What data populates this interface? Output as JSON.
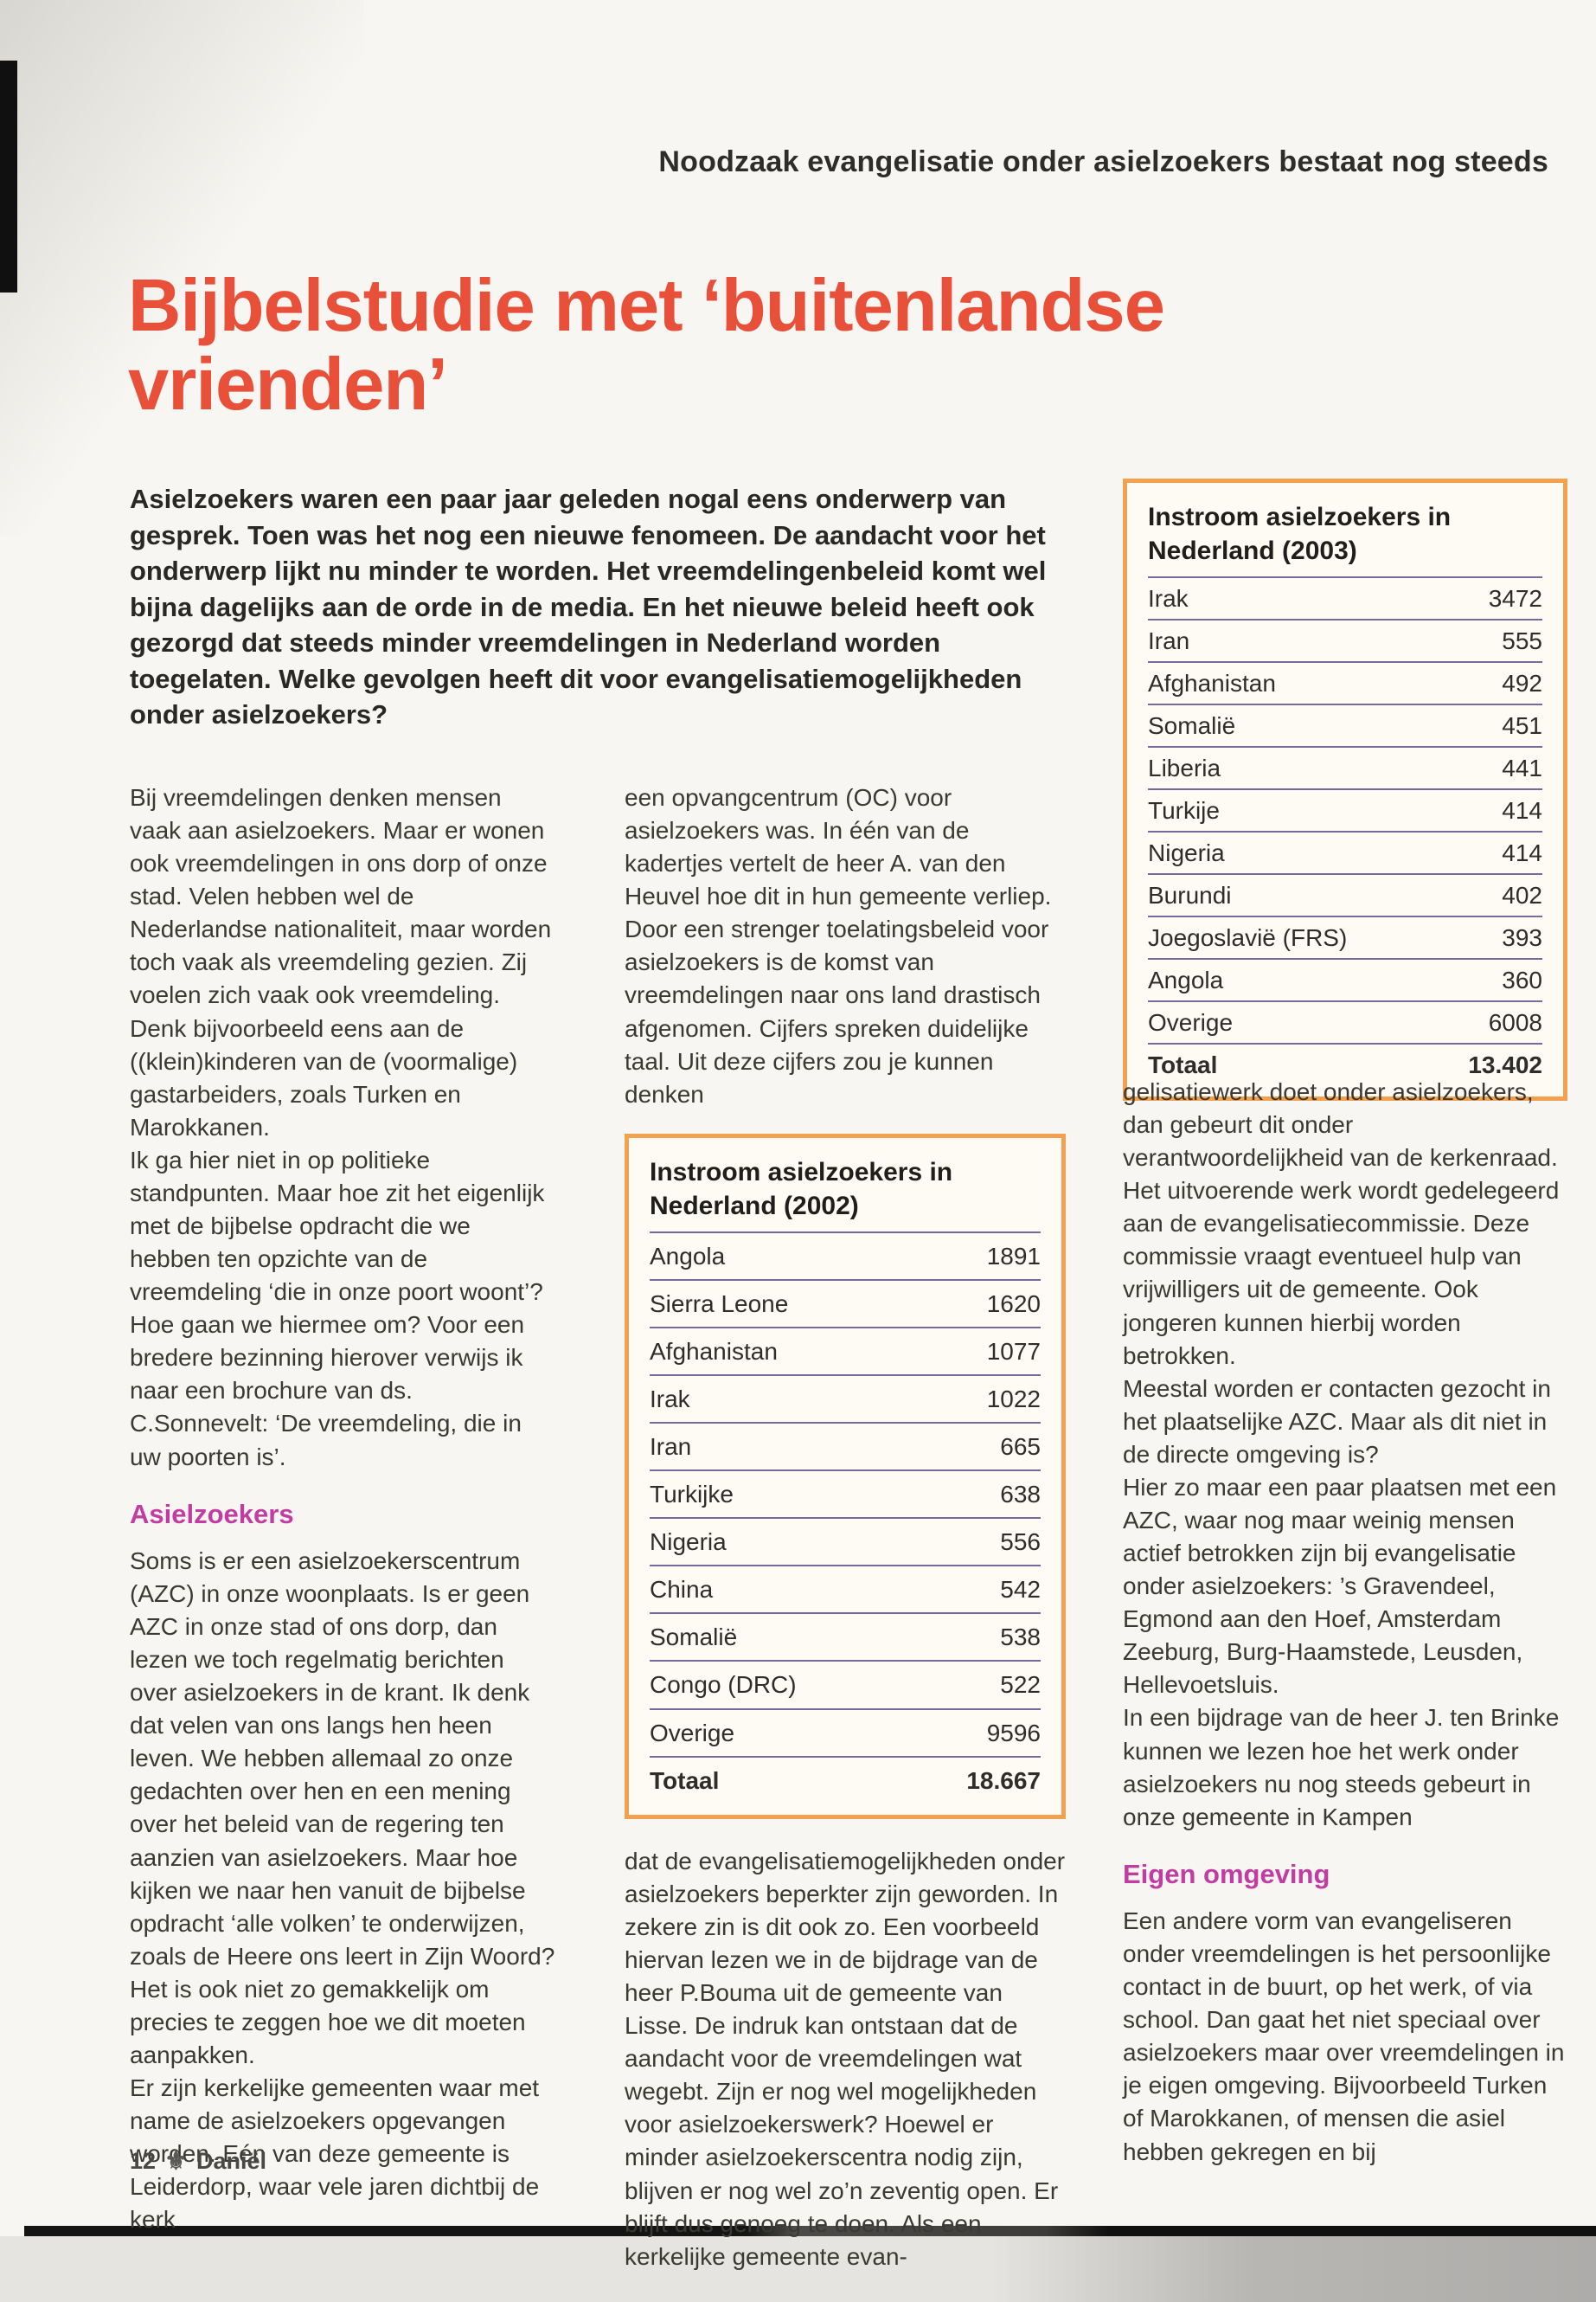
{
  "page": {
    "strap": "Noodzaak evangelisatie onder asielzoekers bestaat nog steeds",
    "title": "Bijbelstudie met ‘buitenlandse vrienden’",
    "intro": "Asielzoekers waren een paar jaar geleden nogal eens onderwerp van gesprek. Toen was het nog een nieuwe fenomeen. De aandacht voor het onderwerp lijkt nu minder te worden. Het vreemdelingenbeleid komt wel bijna dagelijks aan de orde in de media. En het nieuwe beleid heeft ook gezorgd dat steeds minder vreemdelingen in Nederland worden toegelaten. Welke gevolgen heeft dit voor evangelisatiemogelijkheden onder asielzoekers?",
    "footer": {
      "page_number": "12",
      "magazine": "Daniël"
    }
  },
  "article": {
    "left": {
      "p1": "Bij vreemdelingen denken mensen vaak aan asielzoekers. Maar er wonen ook vreemdelingen in ons dorp of onze stad. Velen hebben wel de Nederlandse nationaliteit, maar worden toch vaak als vreemdeling gezien. Zij voelen zich vaak ook vreemdeling. Denk bijvoorbeeld eens aan de ((klein)kinderen van de (voormalige) gastarbeiders, zoals Turken en Marokkanen.",
      "p2": "Ik ga hier niet in op politieke standpunten. Maar hoe zit het eigenlijk met de bijbelse opdracht die we hebben ten opzichte van de vreemdeling ‘die in onze poort woont’? Hoe gaan we hiermee om? Voor een bredere bezinning hierover verwijs ik naar een brochure van ds. C.Sonnevelt: ‘De vreemdeling, die in uw poorten is’.",
      "heading": "Asielzoekers",
      "p3": "Soms is er een asielzoekerscentrum (AZC) in onze woonplaats. Is er geen AZC in onze stad of ons dorp, dan lezen we toch regelmatig berichten over asielzoekers in de krant. Ik denk dat velen van ons langs hen heen leven. We hebben allemaal zo onze gedachten over hen en een mening over het beleid van de regering ten aanzien van asielzoekers. Maar hoe kijken we naar hen vanuit de bijbelse opdracht ‘alle volken’ te onderwijzen, zoals de Heere ons leert in Zijn Woord? Het is ook niet zo gemakkelijk om precies te zeggen hoe we dit moeten aanpakken.",
      "p4": "Er zijn kerkelijke gemeenten waar met name de asielzoekers opgevangen worden. Eén van deze gemeente is Leiderdorp, waar vele jaren dichtbij de kerk"
    },
    "middle": {
      "p1": "een opvangcentrum (OC) voor asielzoekers was. In één van de kadertjes vertelt de heer A. van den Heuvel hoe dit in hun gemeente verliep.",
      "p2": "Door een strenger toelatingsbeleid voor asielzoekers is de komst van vreemdelingen naar ons land drastisch afgenomen. Cijfers spreken duidelijke taal. Uit deze cijfers zou je kunnen denken",
      "p3": "dat de evangelisatiemogelijkheden onder asielzoekers beperkter zijn geworden. In zekere zin is dit ook zo. Een voorbeeld hiervan lezen we in de bijdrage van de heer P.Bouma uit de gemeente van Lisse. De indruk kan ontstaan dat de aandacht voor de vreemdelingen wat wegebt. Zijn er nog wel mogelijkheden voor asielzoekerswerk? Hoewel er minder asielzoekerscentra nodig zijn, blijven er nog wel zo’n zeventig open. Er blijft dus genoeg te doen. Als een kerkelijke gemeente evan-"
    },
    "right": {
      "p1": "gelisatiewerk doet onder asielzoekers, dan gebeurt dit onder verantwoordelijkheid van de kerkenraad. Het uitvoerende werk wordt gedelegeerd aan de evangelisatiecommissie. Deze commissie vraagt eventueel hulp van vrijwilligers uit de gemeente. Ook jongeren kunnen hierbij worden betrokken.",
      "p2": "Meestal worden er contacten gezocht in het plaatselijke AZC. Maar als dit niet in de directe omgeving is?",
      "p3": "Hier zo maar een paar plaatsen met een AZC, waar nog maar weinig mensen actief betrokken zijn bij evangelisatie onder asielzoekers: ’s Gravendeel, Egmond aan den Hoef, Amsterdam Zeeburg, Burg-Haamstede, Leusden, Hellevoetsluis.",
      "p4": "In een bijdrage van de heer J. ten Brinke kunnen we lezen hoe het werk onder asielzoekers nu nog steeds gebeurt in onze gemeente in Kampen",
      "heading": "Eigen omgeving",
      "p5": "Een andere vorm van evangeliseren onder vreemdelingen is het persoonlijke contact in de buurt, op het werk, of via school. Dan gaat het niet speciaal over asielzoekers maar over vreemdelingen in je eigen omgeving. Bijvoorbeeld Turken of Marokkanen, of mensen die asiel hebben gekregen en bij"
    }
  },
  "tables": {
    "y2003": {
      "title": "Instroom asielzoekers in Nederland (2003)",
      "rows": [
        {
          "label": "Irak",
          "value": "3472"
        },
        {
          "label": "Iran",
          "value": "555"
        },
        {
          "label": "Afghanistan",
          "value": "492"
        },
        {
          "label": "Somalië",
          "value": "451"
        },
        {
          "label": "Liberia",
          "value": "441"
        },
        {
          "label": "Turkije",
          "value": "414"
        },
        {
          "label": "Nigeria",
          "value": "414"
        },
        {
          "label": "Burundi",
          "value": "402"
        },
        {
          "label": "Joegoslavië (FRS)",
          "value": "393"
        },
        {
          "label": "Angola",
          "value": "360"
        },
        {
          "label": "Overige",
          "value": "6008"
        },
        {
          "label": "Totaal",
          "value": "13.402",
          "bold": true
        }
      ]
    },
    "y2002": {
      "title": "Instroom asielzoekers in Nederland (2002)",
      "rows": [
        {
          "label": "Angola",
          "value": "1891"
        },
        {
          "label": "Sierra Leone",
          "value": "1620"
        },
        {
          "label": "Afghanistan",
          "value": "1077"
        },
        {
          "label": "Irak",
          "value": "1022"
        },
        {
          "label": "Iran",
          "value": "665"
        },
        {
          "label": "Turkijke",
          "value": "638"
        },
        {
          "label": "Nigeria",
          "value": "556"
        },
        {
          "label": "China",
          "value": "542"
        },
        {
          "label": "Somalië",
          "value": "538"
        },
        {
          "label": "Congo (DRC)",
          "value": "522"
        },
        {
          "label": "Overige",
          "value": "9596"
        },
        {
          "label": "Totaal",
          "value": "18.667",
          "bold": true
        }
      ]
    }
  },
  "icons": {
    "footer_logo": "fleur-de-lis",
    "footer_logo_glyph": "⚜"
  },
  "colors": {
    "title_red": "#e8503a",
    "heading_pink": "#c23da1",
    "table_border_orange": "#f2a24e",
    "table_line_purple": "#746a9b",
    "table_background": "#fdfbf3"
  }
}
